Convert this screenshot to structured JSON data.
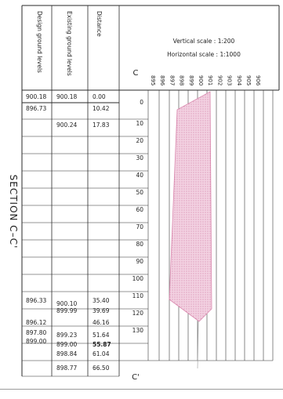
{
  "section_label": "SECTION  C–C'",
  "header": {
    "design_ground_levels": "Design ground levels",
    "existing_ground_levels": "Existing ground levels",
    "distance": "Distance"
  },
  "scales": {
    "vertical": "Vertical  scale  :  1:200",
    "horizontal": "Horizontal  scale  :  1:1000"
  },
  "start_marker": "C",
  "end_marker": "C'",
  "level_ticks": [
    "895",
    "896",
    "897",
    "898",
    "899",
    "900",
    "901",
    "902",
    "903",
    "904",
    "905",
    "906"
  ],
  "chainage_ticks": [
    "0",
    "10",
    "20",
    "30",
    "40",
    "50",
    "60",
    "70",
    "80",
    "90",
    "100",
    "110",
    "120",
    "130"
  ],
  "reference_row": {
    "design": "900.18",
    "existing": "900.18",
    "distance": "0.00"
  },
  "rows": [
    {
      "design": "896.73",
      "existing": "",
      "distance": "10.42"
    },
    {
      "design": "",
      "existing": "900.24",
      "distance": "17.83"
    },
    {
      "design": "896.33",
      "existing": "900.10",
      "distance": "35.40"
    },
    {
      "design": "",
      "existing": "899.99",
      "distance": "39.69"
    },
    {
      "design": "896.12",
      "existing": "",
      "distance": "46.16"
    },
    {
      "design": "897.80",
      "existing": "899.23",
      "distance": "51.64"
    },
    {
      "design": "899.00",
      "existing": "899.00",
      "distance": "55.87"
    },
    {
      "design": "",
      "existing": "898.84",
      "distance": "61.04"
    },
    {
      "design": "",
      "existing": "898.77",
      "distance": "66.50"
    }
  ],
  "colors": {
    "line": "#2a2a2a",
    "hatch_fill": "#f3d2e2",
    "hatch_stroke": "#d987ad"
  }
}
